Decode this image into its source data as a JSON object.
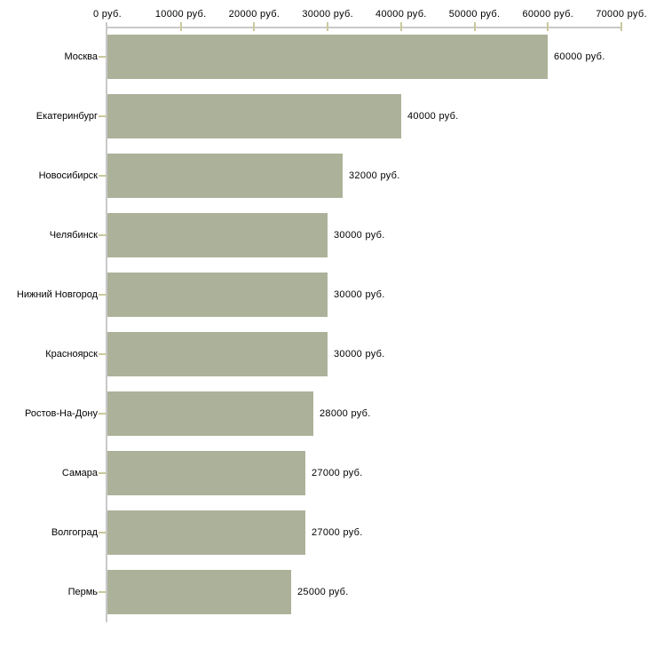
{
  "chart_data": {
    "type": "bar",
    "orientation": "horizontal",
    "title": "",
    "xlabel": "",
    "ylabel": "",
    "grid": false,
    "legend_position": "none",
    "xlim": [
      0,
      70000
    ],
    "unit": "руб.",
    "categories": [
      "Москва",
      "Екатеринбург",
      "Новосибирск",
      "Челябинск",
      "Нижний Новгород",
      "Красноярск",
      "Ростов-На-Дону",
      "Самара",
      "Волгоград",
      "Пермь"
    ],
    "values": [
      60000,
      40000,
      32000,
      30000,
      30000,
      30000,
      28000,
      27000,
      27000,
      25000
    ],
    "value_labels": [
      "60000 руб.",
      "40000 руб.",
      "32000 руб.",
      "30000 руб.",
      "30000 руб.",
      "30000 руб.",
      "28000 руб.",
      "27000 руб.",
      "27000 руб.",
      "25000 руб."
    ],
    "x_ticks": [
      {
        "value": 0,
        "label": "0 руб."
      },
      {
        "value": 10000,
        "label": "10000 руб."
      },
      {
        "value": 20000,
        "label": "20000 руб."
      },
      {
        "value": 30000,
        "label": "30000 руб."
      },
      {
        "value": 40000,
        "label": "40000 руб."
      },
      {
        "value": 50000,
        "label": "50000 руб."
      },
      {
        "value": 60000,
        "label": "60000 руб."
      },
      {
        "value": 70000,
        "label": "70000 руб."
      }
    ],
    "colors": {
      "bar": "#acb29a",
      "axis_line": "#c9c9c9",
      "tick_mark": "#c9c99d",
      "text": "#000000",
      "background": "#ffffff"
    }
  }
}
